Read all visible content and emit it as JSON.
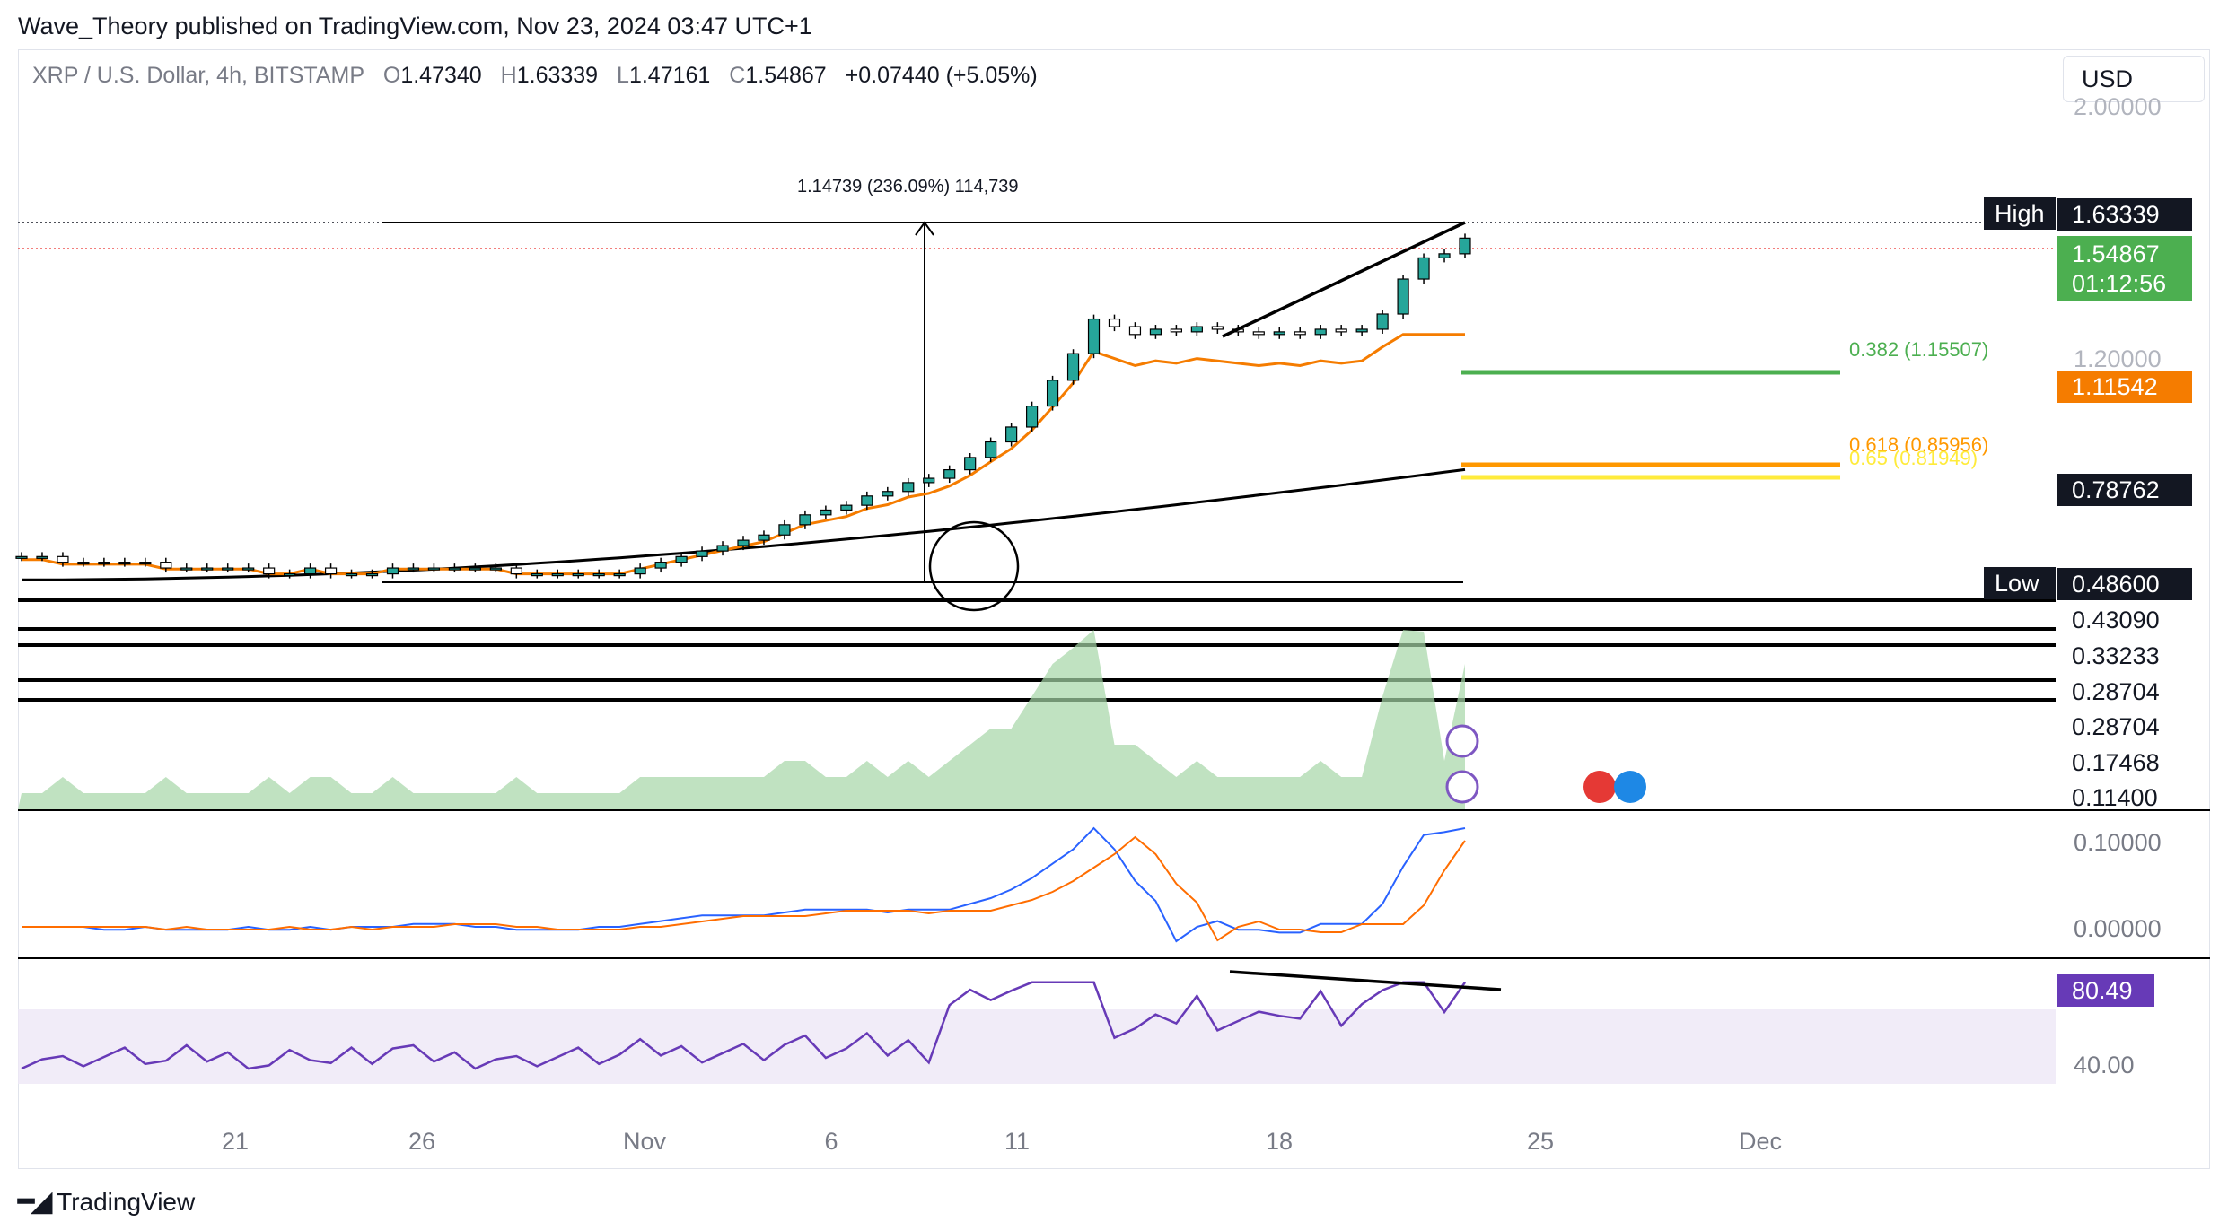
{
  "publisher_line": "Wave_Theory published on TradingView.com, Nov 23, 2024 03:47 UTC+1",
  "symbol": {
    "name": "XRP / U.S. Dollar, 4h, BITSTAMP",
    "open_label": "O",
    "open": "1.47340",
    "high_label": "H",
    "high": "1.63339",
    "low_label": "L",
    "low": "1.47161",
    "close_label": "C",
    "close": "1.54867",
    "change": "+0.07440 (+5.05%)"
  },
  "currency_button": "USD",
  "footer_brand": "TradingView",
  "colors": {
    "up": "#26a69a",
    "down": "#ef5350",
    "ema_fast": "#f57c00",
    "ema_slow": "#000000",
    "fib_382": "#4caf50",
    "fib_618": "#ff9800",
    "fib_65": "#ffeb3b",
    "rsi": "#673ab7",
    "macd": "#2962ff",
    "signal": "#ff6d00",
    "price_label_bg": "#4caf50",
    "ema_label_bg": "#f57c00"
  },
  "chart_data": {
    "type": "candlestick",
    "interval": "4h",
    "x_labels": [
      "21",
      "26",
      "Nov",
      "6",
      "11",
      "18",
      "25",
      "Dec"
    ],
    "price_scale": {
      "ticks": [
        "2.00000",
        "1.20000"
      ],
      "labels": [
        {
          "id": "high",
          "tag": "High",
          "value": "1.63339",
          "style": "dark"
        },
        {
          "id": "last",
          "value": "1.54867",
          "countdown": "01:12:56",
          "style": "green"
        },
        {
          "id": "ema",
          "value": "1.11542",
          "style": "orange"
        },
        {
          "id": "ema200",
          "value": "0.78762",
          "style": "dark"
        },
        {
          "id": "low",
          "tag": "Low",
          "value": "0.48600",
          "style": "dark"
        },
        {
          "id": "s1",
          "value": "0.43090",
          "style": "plain"
        },
        {
          "id": "s2",
          "value": "0.33233",
          "style": "plain"
        },
        {
          "id": "s3",
          "value": "0.28704",
          "style": "plain"
        },
        {
          "id": "s4",
          "value": "0.28704",
          "style": "plain"
        },
        {
          "id": "s5",
          "value": "0.17468",
          "style": "plain"
        },
        {
          "id": "s6",
          "value": "0.11400",
          "style": "plain"
        }
      ]
    },
    "fib_levels": [
      {
        "label": "0.382 (1.15507)",
        "ratio": 0.382,
        "price": 1.15507
      },
      {
        "label": "0.618 (0.85956)",
        "ratio": 0.618,
        "price": 0.85956
      },
      {
        "label": "0.65 (0.81949)",
        "ratio": 0.65,
        "price": 0.81949
      }
    ],
    "measure_label": "1.14739 (236.09%) 114,739",
    "support_levels": [
      0.4309,
      0.33233,
      0.28704,
      0.28704,
      0.17468,
      0.114
    ],
    "candles_approx_close": [
      0.53,
      0.53,
      0.52,
      0.52,
      0.52,
      0.52,
      0.52,
      0.51,
      0.51,
      0.51,
      0.51,
      0.51,
      0.5,
      0.5,
      0.51,
      0.5,
      0.5,
      0.5,
      0.51,
      0.51,
      0.51,
      0.51,
      0.51,
      0.51,
      0.5,
      0.5,
      0.5,
      0.5,
      0.5,
      0.5,
      0.51,
      0.52,
      0.53,
      0.54,
      0.55,
      0.56,
      0.57,
      0.59,
      0.61,
      0.62,
      0.63,
      0.65,
      0.66,
      0.68,
      0.69,
      0.71,
      0.74,
      0.78,
      0.82,
      0.88,
      0.96,
      1.05,
      1.18,
      1.15,
      1.12,
      1.14,
      1.13,
      1.15,
      1.14,
      1.13,
      1.12,
      1.13,
      1.12,
      1.14,
      1.13,
      1.14,
      1.2,
      1.35,
      1.45,
      1.47,
      1.55
    ],
    "macd_panel": {
      "ticks": [
        "0.10000",
        "0.00000"
      ]
    },
    "rsi_panel": {
      "ticks": [
        "40.00"
      ],
      "value_label": "80.49",
      "value": 80.49
    }
  }
}
